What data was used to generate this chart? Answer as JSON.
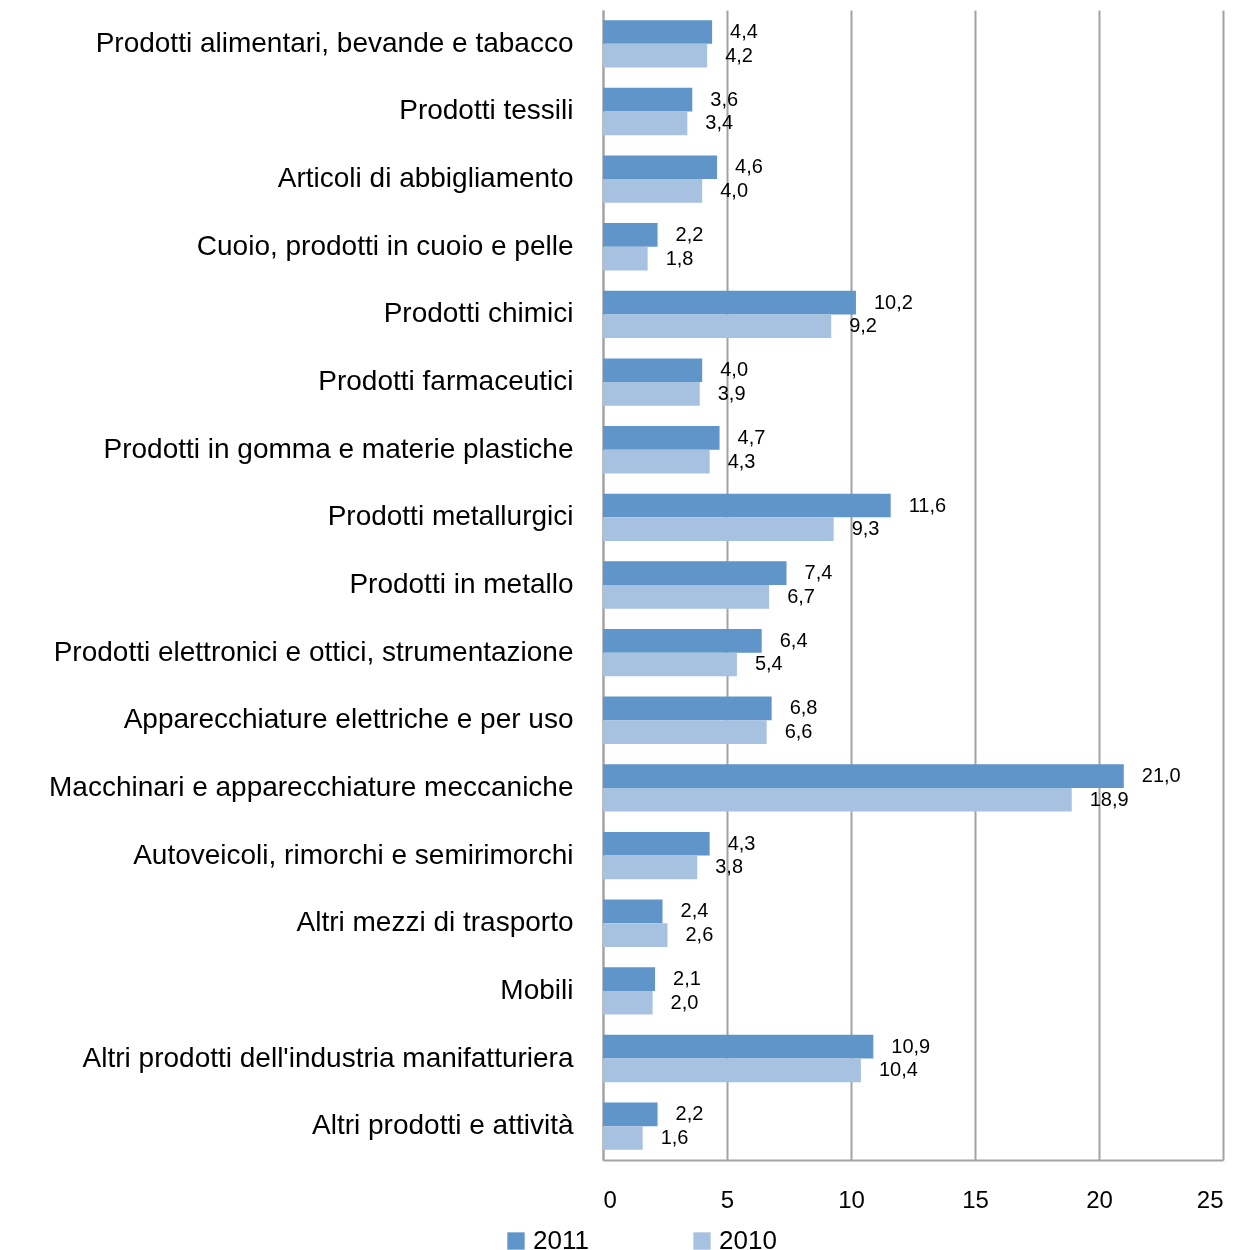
{
  "chart_data": {
    "type": "bar",
    "orientation": "horizontal",
    "categories": [
      "Prodotti alimentari, bevande e tabacco",
      "Prodotti tessili",
      "Articoli di abbigliamento",
      "Cuoio, prodotti in cuoio e pelle",
      "Prodotti chimici",
      "Prodotti farmaceutici",
      "Prodotti in gomma e materie plastiche",
      "Prodotti metallurgici",
      "Prodotti in metallo",
      "Prodotti elettronici e ottici, strumentazione",
      "Apparecchiature elettriche e per uso",
      "Macchinari e apparecchiature meccaniche",
      "Autoveicoli, rimorchi e semirimorchi",
      "Altri mezzi di trasporto",
      "Mobili",
      "Altri prodotti dell'industria manifatturiera",
      "Altri prodotti e attività"
    ],
    "series": [
      {
        "name": "2011",
        "color": "#5f95c9",
        "values": [
          4.4,
          3.6,
          4.6,
          2.2,
          10.2,
          4.0,
          4.7,
          11.6,
          7.4,
          6.4,
          6.8,
          21.0,
          4.3,
          2.4,
          2.1,
          10.9,
          2.2
        ],
        "value_labels": [
          "4,4",
          "3,6",
          "4,6",
          "2,2",
          "10,2",
          "4,0",
          "4,7",
          "11,6",
          "7,4",
          "6,4",
          "6,8",
          "21,0",
          "4,3",
          "2,4",
          "2,1",
          "10,9",
          "2,2"
        ]
      },
      {
        "name": "2010",
        "color": "#a7c1e0",
        "values": [
          4.2,
          3.4,
          4.0,
          1.8,
          9.2,
          3.9,
          4.3,
          9.3,
          6.7,
          5.4,
          6.6,
          18.9,
          3.8,
          2.6,
          2.0,
          10.4,
          1.6
        ],
        "value_labels": [
          "4,2",
          "3,4",
          "4,0",
          "1,8",
          "9,2",
          "3,9",
          "4,3",
          "9,3",
          "6,7",
          "5,4",
          "6,6",
          "18,9",
          "3,8",
          "2,6",
          "2,0",
          "10,4",
          "1,6"
        ]
      }
    ],
    "xlim": [
      0,
      25
    ],
    "xticks": [
      0,
      5,
      10,
      15,
      20,
      25
    ],
    "grid": "x",
    "legend": "bottom"
  }
}
